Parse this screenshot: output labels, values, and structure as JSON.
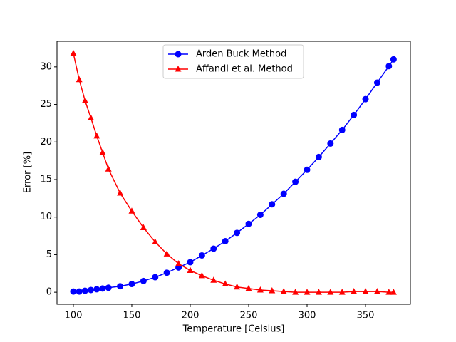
{
  "chart_data": {
    "type": "line",
    "x_label": "Temperature [Celsius]",
    "y_label": "Error [%]",
    "x": [
      100,
      105,
      110,
      115,
      120,
      125,
      130,
      140,
      150,
      160,
      170,
      180,
      190,
      200,
      210,
      220,
      230,
      240,
      250,
      260,
      270,
      280,
      290,
      300,
      310,
      320,
      330,
      340,
      350,
      360,
      370,
      374
    ],
    "series": [
      {
        "name": "Arden Buck Method",
        "color": "#0000ff",
        "marker": "circle",
        "values": [
          0.1,
          0.1,
          0.2,
          0.3,
          0.4,
          0.5,
          0.6,
          0.8,
          1.1,
          1.5,
          2.0,
          2.6,
          3.3,
          4.0,
          4.9,
          5.8,
          6.8,
          7.9,
          9.1,
          10.3,
          11.7,
          13.1,
          14.7,
          16.3,
          18.0,
          19.8,
          21.6,
          23.6,
          25.7,
          27.9,
          30.1,
          31.0
        ]
      },
      {
        "name": "Affandi et al. Method",
        "color": "#ff0000",
        "marker": "triangle",
        "values": [
          31.8,
          28.3,
          25.5,
          23.2,
          20.8,
          18.6,
          16.4,
          13.2,
          10.8,
          8.6,
          6.7,
          5.1,
          3.8,
          2.9,
          2.2,
          1.6,
          1.1,
          0.7,
          0.5,
          0.3,
          0.2,
          0.1,
          0,
          0,
          0,
          0,
          0,
          0.1,
          0.1,
          0.1,
          0,
          0
        ]
      }
    ],
    "xlim": [
      86,
      388.4
    ],
    "ylim": [
      -1.6,
      33.4
    ],
    "xticks": [
      100,
      150,
      200,
      250,
      300,
      350
    ],
    "yticks": [
      0,
      5,
      10,
      15,
      20,
      25,
      30
    ],
    "legend": "upper center"
  }
}
